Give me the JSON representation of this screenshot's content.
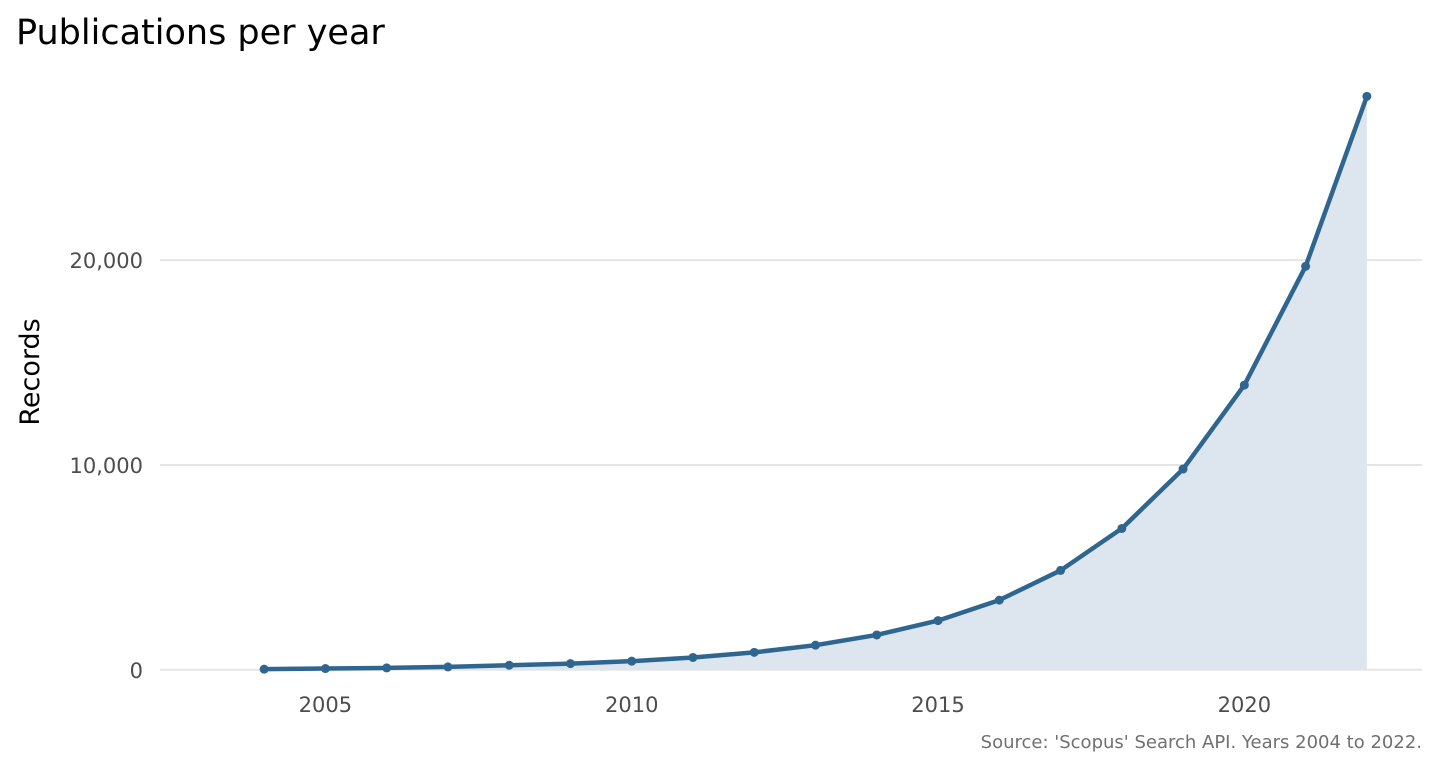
{
  "chart_data": {
    "type": "area",
    "title": "Publications per year",
    "subtitle": "",
    "xlabel": "",
    "ylabel": "Records",
    "caption": "Source: 'Scopus' Search API. Years 2004 to 2022.",
    "x": [
      2004,
      2005,
      2006,
      2007,
      2008,
      2009,
      2010,
      2011,
      2012,
      2013,
      2014,
      2015,
      2016,
      2017,
      2018,
      2019,
      2020,
      2021,
      2022
    ],
    "series": [
      {
        "values": [
          30,
          60,
          90,
          140,
          220,
          300,
          420,
          600,
          850,
          1200,
          1700,
          2400,
          3400,
          4850,
          6900,
          9800,
          13900,
          19700,
          28000
        ]
      }
    ],
    "xlim": [
      2002.3,
      2022.9
    ],
    "ylim": [
      -500,
      28700
    ],
    "x_ticks": [
      2005,
      2010,
      2015,
      2020
    ],
    "x_tick_labels": [
      "2005",
      "2010",
      "2015",
      "2020"
    ],
    "y_ticks": [
      0,
      10000,
      20000
    ],
    "y_tick_labels": [
      "0",
      "10,000",
      "20,000"
    ],
    "grid": "horizontal major only",
    "legend": "none",
    "colors": {
      "line": "#2f6690",
      "area": "#dde5ee",
      "grid": "#e5e5e5",
      "background": "#ffffff"
    }
  }
}
